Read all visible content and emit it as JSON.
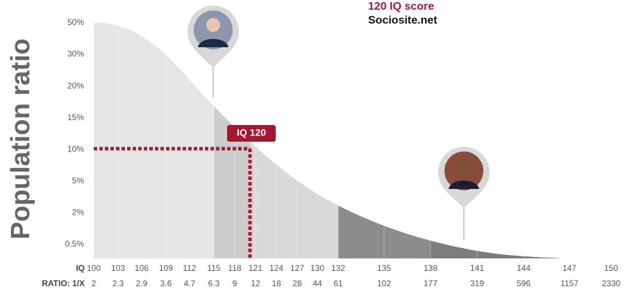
{
  "header": {
    "title": "120 IQ score",
    "source": "Sociosite.net"
  },
  "y_axis": {
    "label": "Population ratio",
    "ticks": [
      "50%",
      "30%",
      "20%",
      "15%",
      "10%",
      "5%",
      "2%",
      "0.5%"
    ]
  },
  "x_axis": {
    "label": "IQ",
    "ticks": [
      100,
      103,
      106,
      109,
      112,
      115,
      118,
      121,
      124,
      127,
      130,
      132,
      135,
      138,
      141,
      144,
      147,
      150
    ]
  },
  "ratio": {
    "label": "RATIO: 1/X",
    "values": [
      2,
      2.3,
      2.9,
      3.6,
      4.7,
      6.3,
      9,
      12,
      18,
      28,
      44,
      61,
      102,
      177,
      319,
      596,
      1157,
      2330
    ]
  },
  "highlight": {
    "label": "IQ 120"
  }
}
